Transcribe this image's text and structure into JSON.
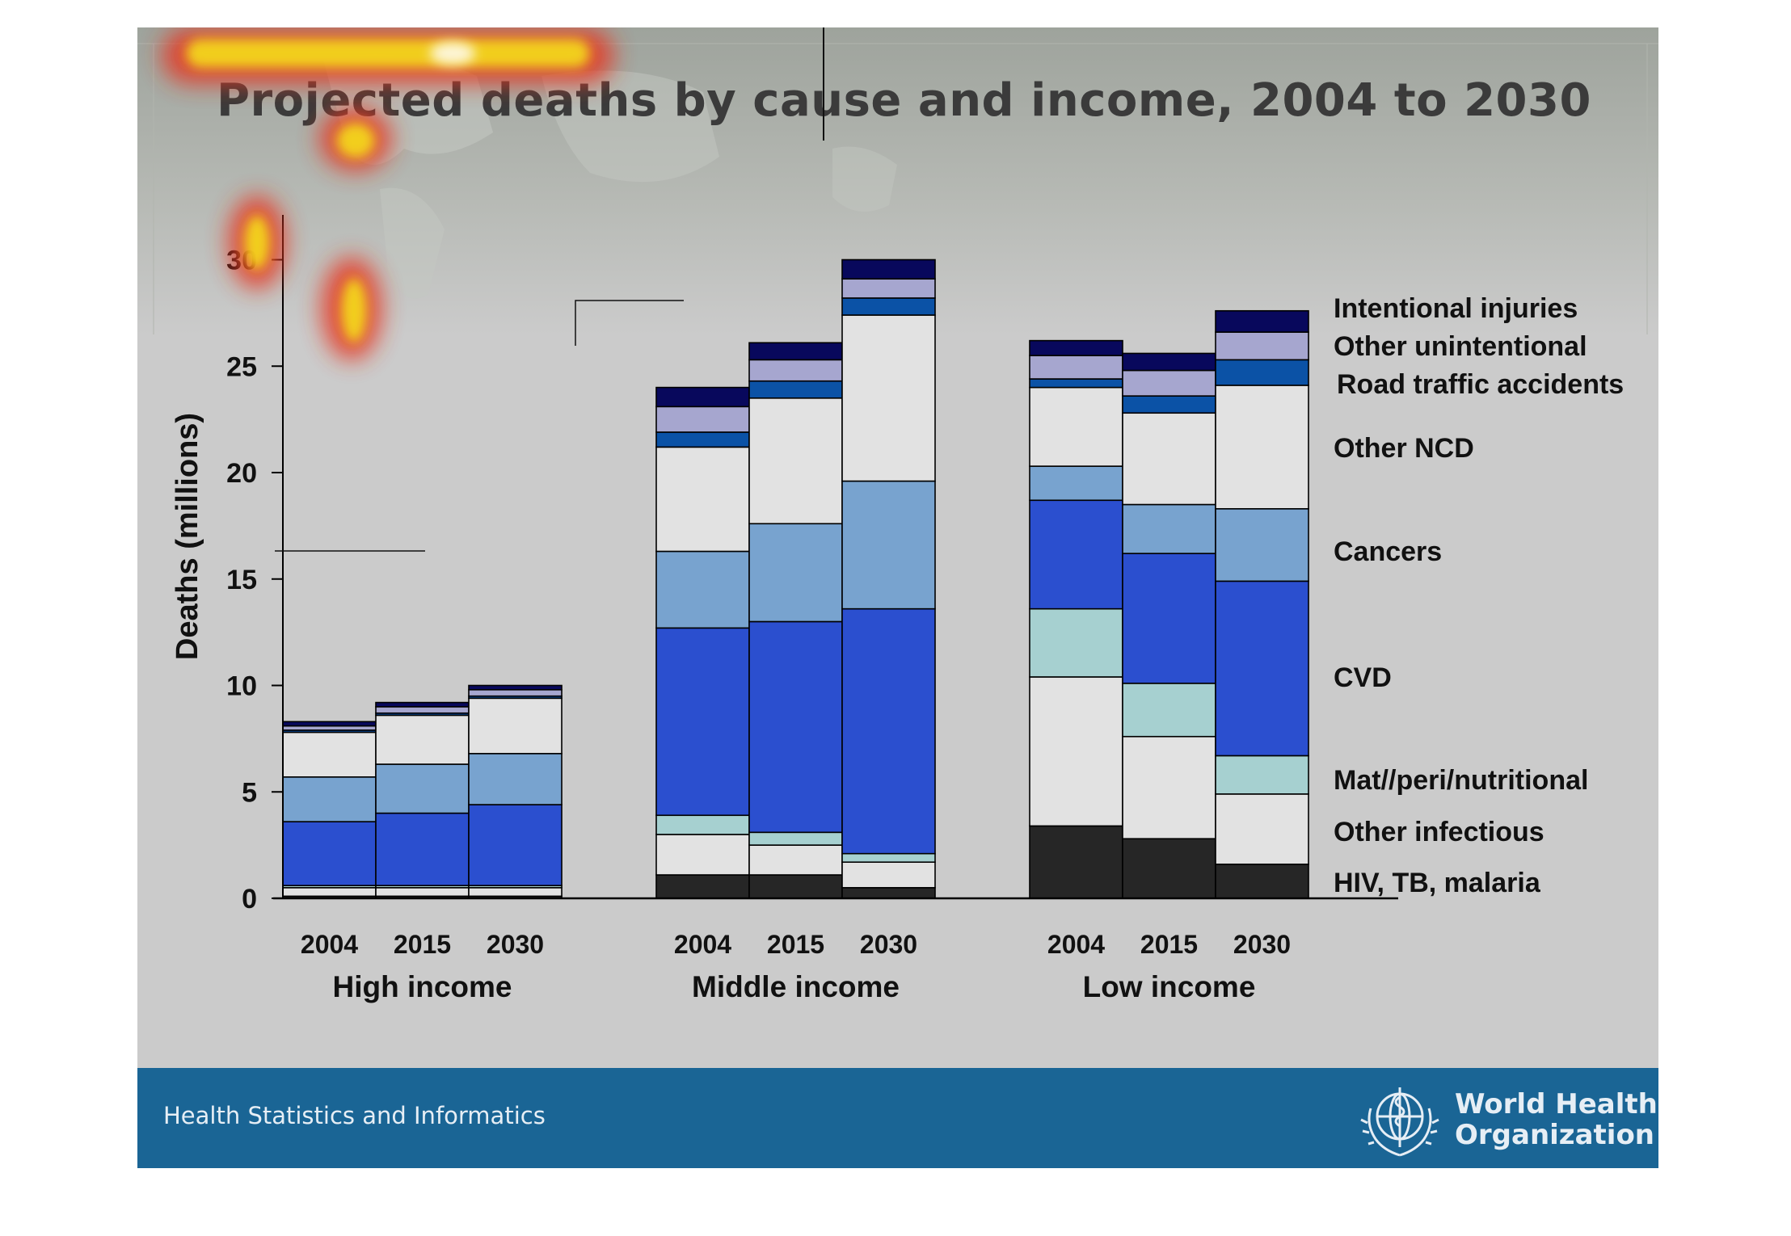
{
  "slide": {
    "title": "Projected deaths by cause and income, 2004 to 2030",
    "footer_text": "Health Statistics and Informatics",
    "org_name_line1": "World Health",
    "org_name_line2": "Organization"
  },
  "colors": {
    "slide_bg": "#cbcbcb",
    "footer_bg": "#1a6595",
    "hiv": "#262626",
    "other_infectious": "#e2e2e2",
    "maternal": "#a6d0d0",
    "cvd": "#2b4fcf",
    "cancers": "#78a3cf",
    "other_ncd": "#e2e2e2",
    "road": "#0b52a6",
    "other_unintentional": "#a6a6cf",
    "intentional": "#08085c"
  },
  "chart_data": {
    "type": "bar",
    "stacked": true,
    "ylabel": "Deaths (millions)",
    "ylim": [
      0,
      30
    ],
    "yticks": [
      0,
      5,
      10,
      15,
      20,
      25,
      30
    ],
    "groups": [
      "High income",
      "Middle income",
      "Low income"
    ],
    "categories": [
      "2004",
      "2015",
      "2030"
    ],
    "series": [
      {
        "name": "HIV, TB, malaria",
        "color": "#262626",
        "values": [
          [
            0.1,
            0.1,
            0.1
          ],
          [
            1.1,
            1.1,
            0.5
          ],
          [
            3.4,
            2.8,
            1.6
          ]
        ]
      },
      {
        "name": "Other infectious",
        "color": "#e2e2e2",
        "values": [
          [
            0.4,
            0.4,
            0.4
          ],
          [
            1.9,
            1.4,
            1.2
          ],
          [
            7.0,
            4.8,
            3.3
          ]
        ]
      },
      {
        "name": "Mat//peri/nutritional",
        "color": "#a6d0d0",
        "values": [
          [
            0.1,
            0.1,
            0.1
          ],
          [
            0.9,
            0.6,
            0.4
          ],
          [
            3.2,
            2.5,
            1.8
          ]
        ]
      },
      {
        "name": "CVD",
        "color": "#2b4fcf",
        "values": [
          [
            3.0,
            3.4,
            3.8
          ],
          [
            8.8,
            9.9,
            11.5
          ],
          [
            5.1,
            6.1,
            8.2
          ]
        ]
      },
      {
        "name": "Cancers",
        "color": "#78a3cf",
        "values": [
          [
            2.1,
            2.3,
            2.4
          ],
          [
            3.6,
            4.6,
            6.0
          ],
          [
            1.6,
            2.3,
            3.4
          ]
        ]
      },
      {
        "name": "Other NCD",
        "color": "#e2e2e2",
        "values": [
          [
            2.1,
            2.3,
            2.6
          ],
          [
            4.9,
            5.9,
            7.8
          ],
          [
            3.7,
            4.3,
            5.8
          ]
        ]
      },
      {
        "name": "Road traffic accidents",
        "color": "#0b52a6",
        "values": [
          [
            0.1,
            0.1,
            0.1
          ],
          [
            0.7,
            0.8,
            0.8
          ],
          [
            0.4,
            0.8,
            1.2
          ]
        ]
      },
      {
        "name": "Other unintentional",
        "color": "#a6a6cf",
        "values": [
          [
            0.2,
            0.3,
            0.3
          ],
          [
            1.2,
            1.0,
            0.9
          ],
          [
            1.1,
            1.2,
            1.3
          ]
        ]
      },
      {
        "name": "Intentional injuries",
        "color": "#08085c",
        "values": [
          [
            0.2,
            0.2,
            0.2
          ],
          [
            0.9,
            0.8,
            0.9
          ],
          [
            0.7,
            0.8,
            1.0
          ]
        ]
      }
    ],
    "legend_position": "right",
    "grid": false
  }
}
